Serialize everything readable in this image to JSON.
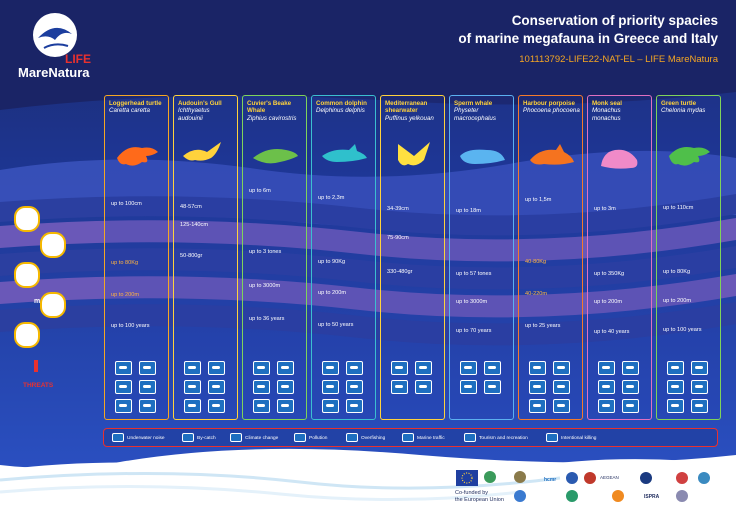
{
  "header": {
    "logo_life": "LIFE",
    "logo_name": "MareNatura",
    "title_line1": "Conservation of priority spacies",
    "title_line2": "of marine megafauna in Greece and Italy",
    "subtitle": "101113792-LIFE22-NAT-EL – LIFE MareNatura"
  },
  "colors": {
    "dark_navy": "#1c2a6e",
    "blue": "#3048b0",
    "orange": "#f5a623",
    "red": "#e8312f",
    "yellow": "#ffd23c"
  },
  "side_labels": {
    "kg": "KG",
    "m": "m",
    "threats": "THREATS"
  },
  "species": [
    {
      "name": "Loggerhead turtle",
      "sci": "Caretta caretta",
      "border": "#f5a623",
      "animal_color": "#ff6a1a",
      "length": "up to 100cm",
      "weight": "up to 80Kg",
      "depth": "up to 200m",
      "age": "up to 100 years"
    },
    {
      "name": "Audouin's Gull",
      "sci": "Ichthyaetus audouinii",
      "border": "#ffd23c",
      "animal_color": "#ffd23c",
      "length": "48-57cm",
      "wingspan": "125-140cm",
      "weight": "50-800gr"
    },
    {
      "name": "Cuvier's Beake Whale",
      "sci": "Ziphius cavirostris",
      "border": "#7fd35a",
      "animal_color": "#6cc04a",
      "length": "up to 6m",
      "weight": "up to 3 tones",
      "depth": "up to 3000m",
      "age": "up to 36 years"
    },
    {
      "name": "Common dolphin",
      "sci": "Delphinus delphis",
      "border": "#3bbfd0",
      "animal_color": "#2fc0cc",
      "length": "up to 2,3m",
      "weight": "up to 90Kg",
      "depth": "up to 200m",
      "age": "up to 50 years"
    },
    {
      "name": "Mediterranean shearwater",
      "sci": "Puffinus yelkouan",
      "border": "#ffd23c",
      "animal_color": "#ffe040",
      "length": "34-39cm",
      "wingspan": "75-90cm",
      "weight": "330-480gr"
    },
    {
      "name": "Sperm whale",
      "sci": "Physeter macrocephalus",
      "border": "#5bb0f0",
      "animal_color": "#5ab4f0",
      "length": "up to 18m",
      "weight": "up to 57 tones",
      "depth": "up to 3000m",
      "age": "up to 70 years"
    },
    {
      "name": "Harbour porpoise",
      "sci": "Phocoena phocoena",
      "border": "#f57a2b",
      "animal_color": "#f5731f",
      "length": "up to 1,5m",
      "weight": "40-80Kg",
      "depth": "40-220m",
      "age": "up to 25 years"
    },
    {
      "name": "Monk seal",
      "sci": "Monachus monachus",
      "border": "#e070c0",
      "animal_color": "#f08ac8",
      "length": "up to 3m",
      "weight": "up to 350Kg",
      "depth": "up to 200m",
      "age": "up to 40 years"
    },
    {
      "name": "Green turtle",
      "sci": "Chelonia mydas",
      "border": "#7fd35a",
      "animal_color": "#4fbf4a",
      "length": "up to 110cm",
      "weight": "up to 80Kg",
      "depth": "up to 200m",
      "age": "up to 100 years"
    }
  ],
  "legend": [
    {
      "label": "Underwater noise",
      "icon": "noise-icon"
    },
    {
      "label": "By-catch",
      "icon": "bycatch-icon"
    },
    {
      "label": "Climate change",
      "icon": "climate-icon"
    },
    {
      "label": "Pollution",
      "icon": "pollution-icon"
    },
    {
      "label": "Overfishing",
      "icon": "overfishing-icon"
    },
    {
      "label": "Marine traffic",
      "icon": "traffic-icon"
    },
    {
      "label": "Tourism and recreation",
      "icon": "tourism-icon"
    },
    {
      "label": "Intentional killing",
      "icon": "killing-icon"
    }
  ],
  "footer": {
    "cofunded_line1": "Co-funded by",
    "cofunded_line2": "the European Union",
    "partner_texts": [
      "AEGEAN",
      "hcmr",
      "ISPRA"
    ]
  }
}
